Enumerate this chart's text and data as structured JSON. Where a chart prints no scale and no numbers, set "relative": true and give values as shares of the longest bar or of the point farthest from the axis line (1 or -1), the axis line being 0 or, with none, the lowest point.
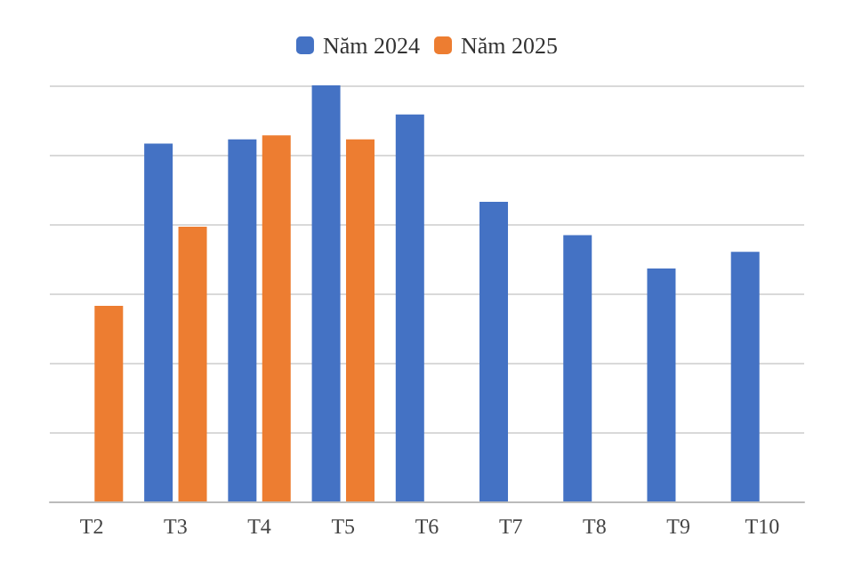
{
  "chart_data": {
    "type": "bar",
    "relative": true,
    "categories": [
      "T2",
      "T3",
      "T4",
      "T5",
      "T6",
      "T7",
      "T8",
      "T9",
      "T10"
    ],
    "series": [
      {
        "name": "Năm 2024",
        "color": "#4472c4",
        "values": [
          null,
          0.86,
          0.87,
          1,
          0.93,
          0.72,
          0.64,
          0.56,
          0.6
        ]
      },
      {
        "name": "Năm 2025",
        "color": "#ed7d31",
        "values": [
          0.47,
          0.66,
          0.88,
          0.87,
          null,
          null,
          null,
          null,
          null
        ]
      }
    ],
    "grid": "y",
    "legend": "top"
  }
}
